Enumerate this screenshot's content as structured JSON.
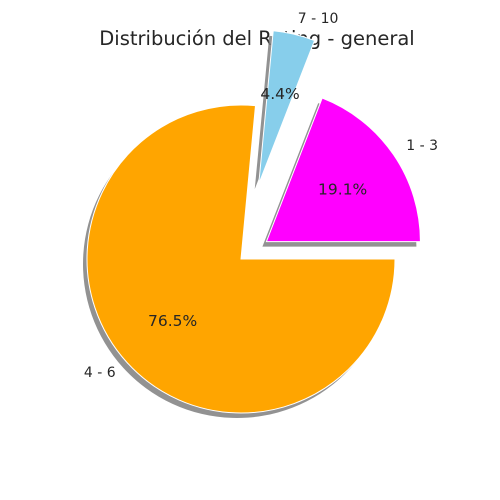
{
  "chart_data": {
    "type": "pie",
    "title": "Distribución del Rating - general",
    "slices": [
      {
        "label": "1 - 3",
        "value": 19.1,
        "pct_text": "19.1%",
        "color": "#ff00ff",
        "explode": 0.2
      },
      {
        "label": "7 - 10",
        "value": 4.4,
        "pct_text": "4.4%",
        "color": "#87ceeb",
        "explode": 0.5
      },
      {
        "label": "4 - 6",
        "value": 76.5,
        "pct_text": "76.5%",
        "color": "#ffa500",
        "explode": 0.0
      }
    ],
    "start_angle_deg": 0,
    "counterclock": true,
    "shadow": true
  }
}
